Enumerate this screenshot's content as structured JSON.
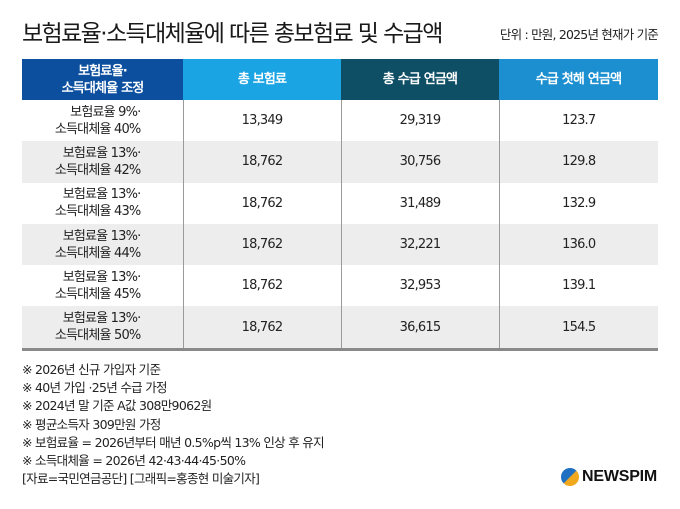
{
  "header": {
    "title": "보험료율·소득대체율에 따른 총보험료 및 수급액",
    "unit": "단위 : 만원, 2025년 현재가 기준"
  },
  "table": {
    "columns": [
      {
        "line1": "보험료율·",
        "line2": "소득대체율 조정"
      },
      {
        "label": "총 보험료"
      },
      {
        "label": "총 수급 연금액"
      },
      {
        "label": "수급 첫해 연금액"
      }
    ],
    "rows": [
      {
        "line1": "보험료율 9%·",
        "line2": "소득대체율 40%",
        "total_premium": "13,349",
        "total_pension": "29,319",
        "first_year": "123.7"
      },
      {
        "line1": "보험료율 13%·",
        "line2": "소득대체율 42%",
        "total_premium": "18,762",
        "total_pension": "30,756",
        "first_year": "129.8"
      },
      {
        "line1": "보험료율 13%·",
        "line2": "소득대체율 43%",
        "total_premium": "18,762",
        "total_pension": "31,489",
        "first_year": "132.9"
      },
      {
        "line1": "보험료율 13%·",
        "line2": "소득대체율 44%",
        "total_premium": "18,762",
        "total_pension": "32,221",
        "first_year": "136.0"
      },
      {
        "line1": "보험료율 13%·",
        "line2": "소득대체율 45%",
        "total_premium": "18,762",
        "total_pension": "32,953",
        "first_year": "139.1"
      },
      {
        "line1": "보험료율 13%·",
        "line2": "소득대체율 50%",
        "total_premium": "18,762",
        "total_pension": "36,615",
        "first_year": "154.5"
      }
    ]
  },
  "notes": [
    "※ 2026년 신규 가입자 기준",
    "※ 40년 가입 ·25년 수급 가정",
    "※ 2024년 말 기준 A값 308만9062원",
    "※ 평균소득자 309만원 가정",
    "※ 보험료율 = 2026년부터 매년 0.5%p씩 13% 인상 후 유지",
    "※ 소득대체율 = 2026년 42·43·44·45·50%",
    "[자료=국민연금공단] [그래픽=홍종현 미술기자]"
  ],
  "logo": {
    "text": "NEWSPIM"
  },
  "colors": {
    "header_col1": "#0b4f9e",
    "header_col2": "#1aa4e4",
    "header_col3": "#0e4f66",
    "header_col4": "#1b8fcf",
    "row_alt": "#ededed"
  }
}
